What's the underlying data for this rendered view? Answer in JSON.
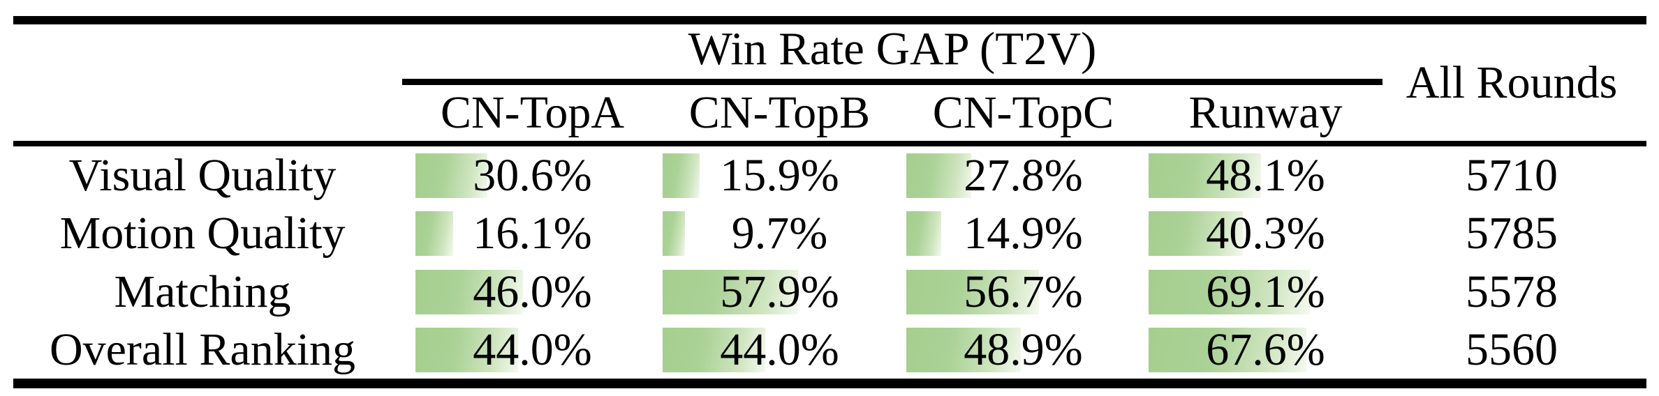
{
  "table": {
    "group_header": "Win Rate GAP (T2V)",
    "side_header": "All Rounds",
    "columns": [
      "CN-TopA",
      "CN-TopB",
      "CN-TopC",
      "Runway"
    ],
    "rows": [
      {
        "label": "Visual Quality",
        "cells": [
          {
            "pct": 30.6,
            "text": "30.6%"
          },
          {
            "pct": 15.9,
            "text": "15.9%"
          },
          {
            "pct": 27.8,
            "text": "27.8%"
          },
          {
            "pct": 48.1,
            "text": "48.1%"
          }
        ],
        "all_rounds": "5710"
      },
      {
        "label": "Motion Quality",
        "cells": [
          {
            "pct": 16.1,
            "text": "16.1%"
          },
          {
            "pct": 9.7,
            "text": "9.7%"
          },
          {
            "pct": 14.9,
            "text": "14.9%"
          },
          {
            "pct": 40.3,
            "text": "40.3%"
          }
        ],
        "all_rounds": "5785"
      },
      {
        "label": "Matching",
        "cells": [
          {
            "pct": 46.0,
            "text": "46.0%"
          },
          {
            "pct": 57.9,
            "text": "57.9%"
          },
          {
            "pct": 56.7,
            "text": "56.7%"
          },
          {
            "pct": 69.1,
            "text": "69.1%"
          }
        ],
        "all_rounds": "5578"
      },
      {
        "label": "Overall Ranking",
        "cells": [
          {
            "pct": 44.0,
            "text": "44.0%"
          },
          {
            "pct": 44.0,
            "text": "44.0%"
          },
          {
            "pct": 48.9,
            "text": "48.9%"
          },
          {
            "pct": 67.6,
            "text": "67.6%"
          }
        ],
        "all_rounds": "5560"
      }
    ]
  },
  "chart_data": {
    "type": "table",
    "title": "Win Rate GAP (T2V)",
    "categories": [
      "CN-TopA",
      "CN-TopB",
      "CN-TopC",
      "Runway"
    ],
    "series": [
      {
        "name": "Visual Quality",
        "values": [
          30.6,
          15.9,
          27.8,
          48.1
        ],
        "all_rounds": 5710
      },
      {
        "name": "Motion Quality",
        "values": [
          16.1,
          9.7,
          14.9,
          40.3
        ],
        "all_rounds": 5785
      },
      {
        "name": "Matching",
        "values": [
          46.0,
          57.9,
          56.7,
          69.1
        ],
        "all_rounds": 5578
      },
      {
        "name": "Overall Ranking",
        "values": [
          44.0,
          44.0,
          48.9,
          67.6
        ],
        "all_rounds": 5560
      }
    ],
    "value_unit": "%",
    "bar_scale_max": 100
  },
  "colors": {
    "bar_gradient_start": "#a5ce8e",
    "bar_gradient_end": "#f4f9ef",
    "rule": "#000000",
    "text": "#000000"
  }
}
